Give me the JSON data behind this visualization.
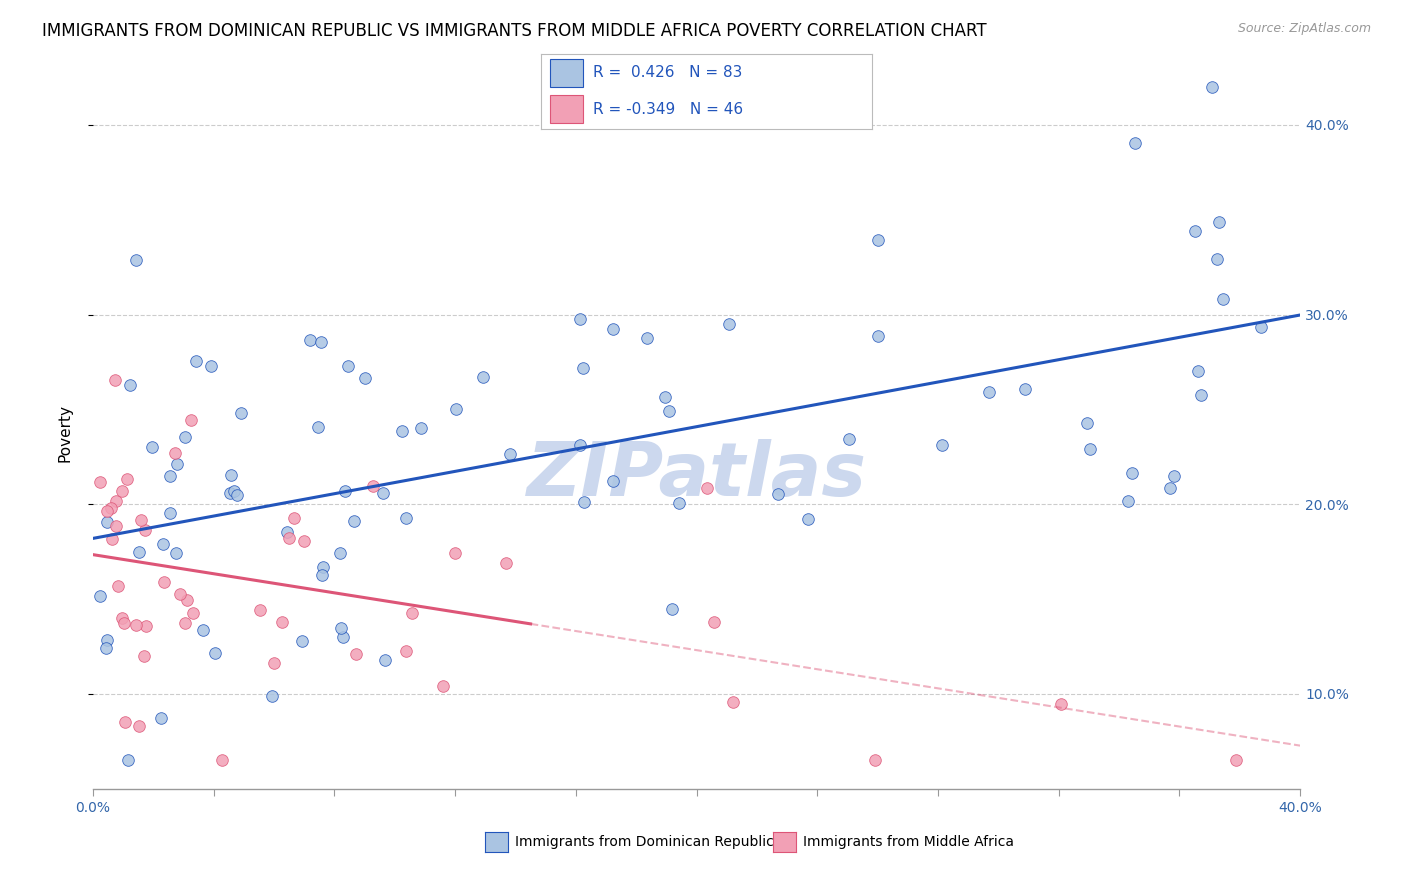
{
  "title": "IMMIGRANTS FROM DOMINICAN REPUBLIC VS IMMIGRANTS FROM MIDDLE AFRICA POVERTY CORRELATION CHART",
  "source": "Source: ZipAtlas.com",
  "ylabel": "Poverty",
  "ytick_labels": [
    "10.0%",
    "20.0%",
    "30.0%",
    "40.0%"
  ],
  "ytick_values": [
    0.1,
    0.2,
    0.3,
    0.4
  ],
  "xmin": 0.0,
  "xmax": 0.4,
  "ymin": 0.05,
  "ymax": 0.425,
  "r_blue": 0.426,
  "n_blue": 83,
  "r_pink": -0.349,
  "n_pink": 46,
  "legend_label_blue": "Immigrants from Dominican Republic",
  "legend_label_pink": "Immigrants from Middle Africa",
  "color_blue": "#aac4e2",
  "color_pink": "#f2a0b5",
  "color_trendline_blue": "#2255bb",
  "color_trendline_pink": "#dd5577",
  "watermark": "ZIPatlas",
  "watermark_color": "#ccd8ee",
  "title_fontsize": 12,
  "axis_label_fontsize": 11,
  "tick_fontsize": 10,
  "legend_fontsize": 11
}
